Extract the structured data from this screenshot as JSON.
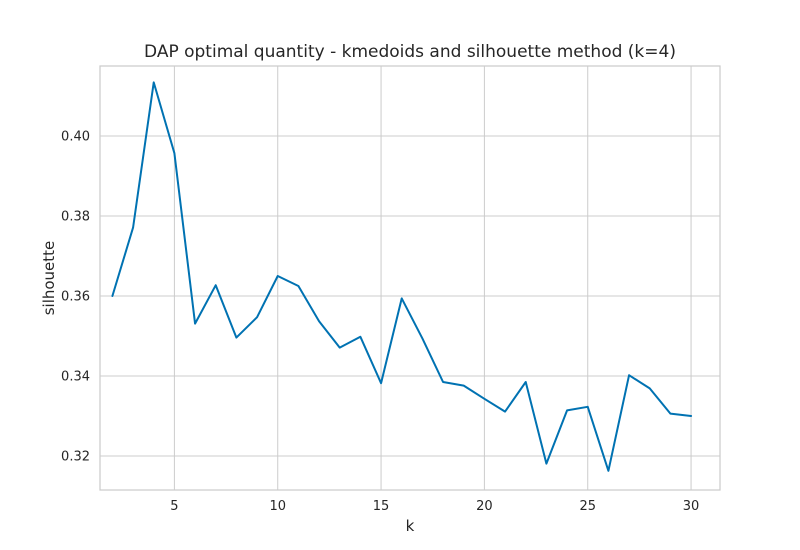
{
  "chart_data": {
    "type": "line",
    "title": "DAP optimal quantity - kmedoids and silhouette method (k=4)",
    "xlabel": "k",
    "ylabel": "silhouette",
    "xlim": [
      1.4,
      31.4
    ],
    "ylim": [
      0.3115,
      0.4175
    ],
    "xticks": [
      5,
      10,
      15,
      20,
      25,
      30
    ],
    "yticks": [
      0.32,
      0.34,
      0.36,
      0.38,
      0.4
    ],
    "ytick_labels": [
      "0.32",
      "0.34",
      "0.36",
      "0.38",
      "0.40"
    ],
    "grid": true,
    "series": [
      {
        "color": "#0072b2",
        "x": [
          2,
          3,
          4,
          5,
          6,
          7,
          8,
          9,
          10,
          11,
          12,
          13,
          14,
          15,
          16,
          17,
          18,
          19,
          20,
          21,
          22,
          23,
          24,
          25,
          26,
          27,
          28,
          29,
          30
        ],
        "y": [
          0.36,
          0.3771,
          0.4134,
          0.3957,
          0.3531,
          0.3627,
          0.3496,
          0.3547,
          0.365,
          0.3625,
          0.3537,
          0.3471,
          0.3498,
          0.3382,
          0.3594,
          0.3494,
          0.3385,
          0.3376,
          0.3343,
          0.3311,
          0.3385,
          0.3181,
          0.3314,
          0.3323,
          0.3163,
          0.3402,
          0.3369,
          0.3306,
          0.33
        ]
      }
    ]
  }
}
